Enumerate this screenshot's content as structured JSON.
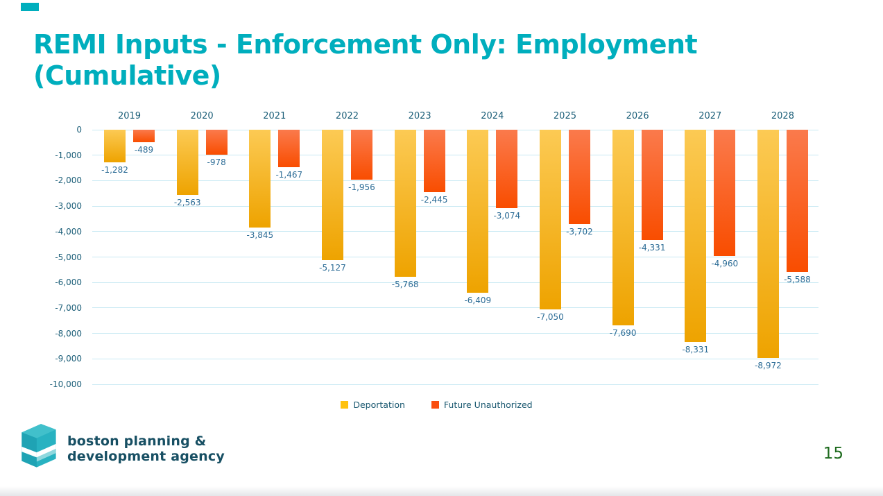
{
  "slide": {
    "title": "REMI Inputs - Enforcement Only: Employment (Cumulative)",
    "page_number": "15",
    "accent_color": "#00AEBD",
    "title_color": "#00AEBD",
    "page_number_color": "#1E6B1E"
  },
  "logo": {
    "line1": "boston planning &",
    "line2": "development agency",
    "text_color": "#174F63",
    "icon_color": "#2AB3C1"
  },
  "chart_data": {
    "type": "bar",
    "title": "REMI Inputs - Enforcement Only: Employment (Cumulative)",
    "xlabel": "",
    "ylabel": "",
    "categories": [
      "2019",
      "2020",
      "2021",
      "2022",
      "2023",
      "2024",
      "2025",
      "2026",
      "2027",
      "2028"
    ],
    "series": [
      {
        "name": "Deportation",
        "legend_color": "#FFC20D",
        "bar_gradient_top": "#FCCA54",
        "bar_gradient_bottom": "#EEA300",
        "values": [
          -1282,
          -2563,
          -3845,
          -5127,
          -5768,
          -6409,
          -7050,
          -7690,
          -8331,
          -8972
        ],
        "labels": [
          "-1,282",
          "-2,563",
          "-3,845",
          "-5,127",
          "-5,768",
          "-6,409",
          "-7,050",
          "-7,690",
          "-8,331",
          "-8,972"
        ]
      },
      {
        "name": "Future Unauthorized",
        "legend_color": "#FA4E0E",
        "bar_gradient_top": "#FA7A4C",
        "bar_gradient_bottom": "#F94D00",
        "values": [
          -489,
          -978,
          -1467,
          -1956,
          -2445,
          -3074,
          -3702,
          -4331,
          -4960,
          -5588
        ],
        "labels": [
          "-489",
          "-978",
          "-1,467",
          "-1,956",
          "-2,445",
          "-3,074",
          "-3,702",
          "-4,331",
          "-4,960",
          "-5,588"
        ]
      }
    ],
    "ylim": [
      -10000,
      0
    ],
    "ytick_interval": 1000,
    "ytick_labels": [
      "0",
      "-1,000",
      "-2,000",
      "-3,000",
      "-4,000",
      "-5,000",
      "-6,000",
      "-7,000",
      "-8,000",
      "-9,000",
      "-10,000"
    ],
    "grid": true,
    "gridline_color": "#C8E9F3",
    "axis_tick_color": "#1B5E78",
    "data_label_color": "#2C6C96",
    "legend_position": "bottom"
  }
}
